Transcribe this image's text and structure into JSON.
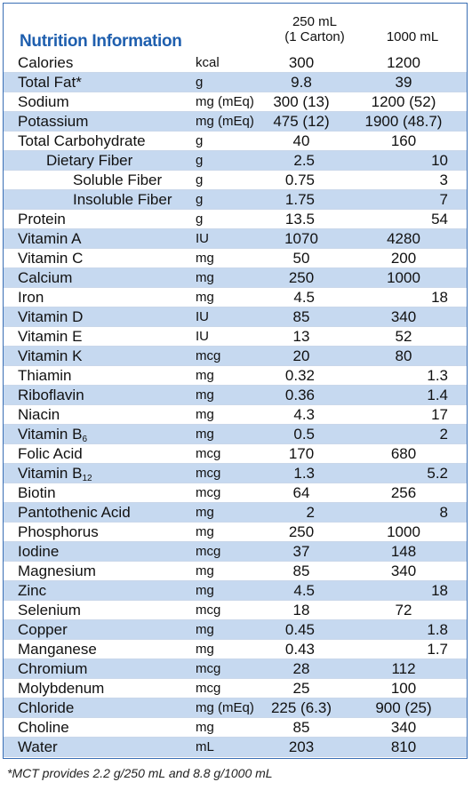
{
  "title": "Nutrition Information",
  "columns": {
    "col1_line1": "250 mL",
    "col1_line2": "(1 Carton)",
    "col2": "1000 mL"
  },
  "rows": [
    {
      "name": "Calories",
      "unit": "kcal",
      "v1": "300",
      "v2": "1200",
      "indent": 0,
      "align": "c"
    },
    {
      "name": "Total Fat*",
      "unit": "g",
      "v1": "9.8",
      "v2": "39",
      "indent": 0,
      "align": "c"
    },
    {
      "name": "Sodium",
      "unit": "mg (mEq)",
      "v1": "300 (13)",
      "v2": "1200 (52)",
      "indent": 0,
      "align": "c"
    },
    {
      "name": "Potassium",
      "unit": "mg (mEq)",
      "v1": "475 (12)",
      "v2": "1900 (48.7)",
      "indent": 0,
      "align": "c"
    },
    {
      "name": "Total Carbohydrate",
      "unit": "g",
      "v1": "40",
      "v2": "160",
      "indent": 0,
      "align": "c"
    },
    {
      "name": "Dietary Fiber",
      "unit": "g",
      "v1": "2.5",
      "v2": "10",
      "indent": 1,
      "align": "r"
    },
    {
      "name": "Soluble Fiber",
      "unit": "g",
      "v1": "0.75",
      "v2": "3",
      "indent": 2,
      "align": "r"
    },
    {
      "name": "Insoluble Fiber",
      "unit": "g",
      "v1": "1.75",
      "v2": "7",
      "indent": 2,
      "align": "r"
    },
    {
      "name": "Protein",
      "unit": "g",
      "v1": "13.5",
      "v2": "54",
      "indent": 0,
      "align": "r"
    },
    {
      "name": "Vitamin A",
      "unit": "IU",
      "v1": "1070",
      "v2": "4280",
      "indent": 0,
      "align": "c"
    },
    {
      "name": "Vitamin C",
      "unit": "mg",
      "v1": "50",
      "v2": "200",
      "indent": 0,
      "align": "c"
    },
    {
      "name": "Calcium",
      "unit": "mg",
      "v1": "250",
      "v2": "1000",
      "indent": 0,
      "align": "c"
    },
    {
      "name": "Iron",
      "unit": "mg",
      "v1": "4.5",
      "v2": "18",
      "indent": 0,
      "align": "r"
    },
    {
      "name": "Vitamin D",
      "unit": "IU",
      "v1": "85",
      "v2": "340",
      "indent": 0,
      "align": "c"
    },
    {
      "name": "Vitamin E",
      "unit": "IU",
      "v1": "13",
      "v2": "52",
      "indent": 0,
      "align": "c"
    },
    {
      "name": "Vitamin K",
      "unit": "mcg",
      "v1": "20",
      "v2": "80",
      "indent": 0,
      "align": "c"
    },
    {
      "name": "Thiamin",
      "unit": "mg",
      "v1": "0.32",
      "v2": "1.3",
      "indent": 0,
      "align": "r"
    },
    {
      "name": "Riboflavin",
      "unit": "mg",
      "v1": "0.36",
      "v2": "1.4",
      "indent": 0,
      "align": "r"
    },
    {
      "name": "Niacin",
      "unit": "mg",
      "v1": "4.3",
      "v2": "17",
      "indent": 0,
      "align": "r"
    },
    {
      "name": "Vitamin B",
      "sub": "6",
      "unit": "mg",
      "v1": "0.5",
      "v2": "2",
      "indent": 0,
      "align": "r"
    },
    {
      "name": "Folic Acid",
      "unit": "mcg",
      "v1": "170",
      "v2": "680",
      "indent": 0,
      "align": "c"
    },
    {
      "name": "Vitamin B",
      "sub": "12",
      "unit": "mcg",
      "v1": "1.3",
      "v2": "5.2",
      "indent": 0,
      "align": "r"
    },
    {
      "name": "Biotin",
      "unit": "mcg",
      "v1": "64",
      "v2": "256",
      "indent": 0,
      "align": "c"
    },
    {
      "name": "Pantothenic Acid",
      "unit": "mg",
      "v1": "2",
      "v2": "8",
      "indent": 0,
      "align": "r"
    },
    {
      "name": "Phosphorus",
      "unit": "mg",
      "v1": "250",
      "v2": "1000",
      "indent": 0,
      "align": "c"
    },
    {
      "name": "Iodine",
      "unit": "mcg",
      "v1": "37",
      "v2": "148",
      "indent": 0,
      "align": "c"
    },
    {
      "name": "Magnesium",
      "unit": "mg",
      "v1": "85",
      "v2": "340",
      "indent": 0,
      "align": "c"
    },
    {
      "name": "Zinc",
      "unit": "mg",
      "v1": "4.5",
      "v2": "18",
      "indent": 0,
      "align": "r"
    },
    {
      "name": "Selenium",
      "unit": "mcg",
      "v1": "18",
      "v2": "72",
      "indent": 0,
      "align": "c"
    },
    {
      "name": "Copper",
      "unit": "mg",
      "v1": "0.45",
      "v2": "1.8",
      "indent": 0,
      "align": "r"
    },
    {
      "name": "Manganese",
      "unit": "mg",
      "v1": "0.43",
      "v2": "1.7",
      "indent": 0,
      "align": "r"
    },
    {
      "name": "Chromium",
      "unit": "mcg",
      "v1": "28",
      "v2": "112",
      "indent": 0,
      "align": "c"
    },
    {
      "name": "Molybdenum",
      "unit": "mcg",
      "v1": "25",
      "v2": "100",
      "indent": 0,
      "align": "c"
    },
    {
      "name": "Chloride",
      "unit": "mg (mEq)",
      "v1": "225 (6.3)",
      "v2": "900 (25)",
      "indent": 0,
      "align": "c"
    },
    {
      "name": "Choline",
      "unit": "mg",
      "v1": "85",
      "v2": "340",
      "indent": 0,
      "align": "c"
    },
    {
      "name": "Water",
      "unit": "mL",
      "v1": "203",
      "v2": "810",
      "indent": 0,
      "align": "c"
    }
  ],
  "footnote": "*MCT provides 2.2 g/250 mL and 8.8 g/1000 mL",
  "colors": {
    "title": "#1f5fae",
    "shade": "#c6d9f0",
    "border": "#3a6fb5"
  }
}
